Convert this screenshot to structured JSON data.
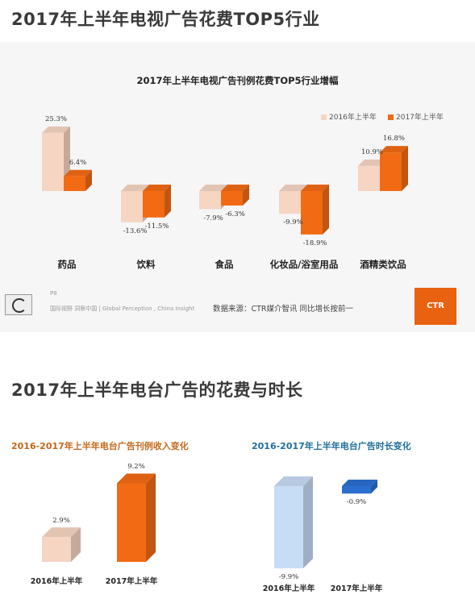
{
  "section1": {
    "heading": "2017年上半年电视广告花费TOP5行业",
    "chart_title": "2017年上半年电视广告刊例花费TOP5行业增幅",
    "logo_text": "P8",
    "logo_sub": "国际视野 洞察中国 | Global Perception , China Insight",
    "source": "数据来源：CTR媒介智讯  同比增长按前一",
    "brand": "CTR"
  },
  "section2": {
    "heading": "2017年上半年电台广告的花费与时长"
  },
  "colors": {
    "y2016": "#f6d5c3",
    "y2017": "#f26a14",
    "radio_2016": "#c7dcf5",
    "radio_2017": "#2a6fcf"
  },
  "chart_data": [
    {
      "type": "bar",
      "title": "2017年上半年电视广告刊例花费TOP5行业增幅",
      "categories": [
        "药品",
        "饮料",
        "食品",
        "化妆品/浴室用品",
        "酒精类饮品"
      ],
      "series": [
        {
          "name": "2016年上半年",
          "values": [
            25.3,
            -13.6,
            -7.9,
            -9.9,
            10.9
          ],
          "labels": [
            "25.3%",
            "-13.6%",
            "-7.9%",
            "-9.9%",
            "10.9%"
          ]
        },
        {
          "name": "2017年上半年",
          "values": [
            6.4,
            -11.5,
            -6.3,
            -18.9,
            16.8
          ],
          "labels": [
            "6.4%",
            "-11.5%",
            "-6.3%",
            "-18.9%",
            "16.8%"
          ]
        }
      ],
      "legend": "top-right"
    },
    {
      "type": "bar",
      "title": "2016-2017年上半年电台广告刊例收入变化",
      "categories": [
        "2016年上半年",
        "2017年上半年"
      ],
      "values": [
        2.9,
        9.2
      ],
      "labels": [
        "2.9%",
        "9.2%"
      ]
    },
    {
      "type": "bar",
      "title": "2016-2017年上半年电台广告时长变化",
      "categories": [
        "2016年上半年",
        "2017年上半年"
      ],
      "values": [
        -9.9,
        -0.9
      ],
      "labels": [
        "-9.9%",
        "-0.9%"
      ]
    }
  ]
}
